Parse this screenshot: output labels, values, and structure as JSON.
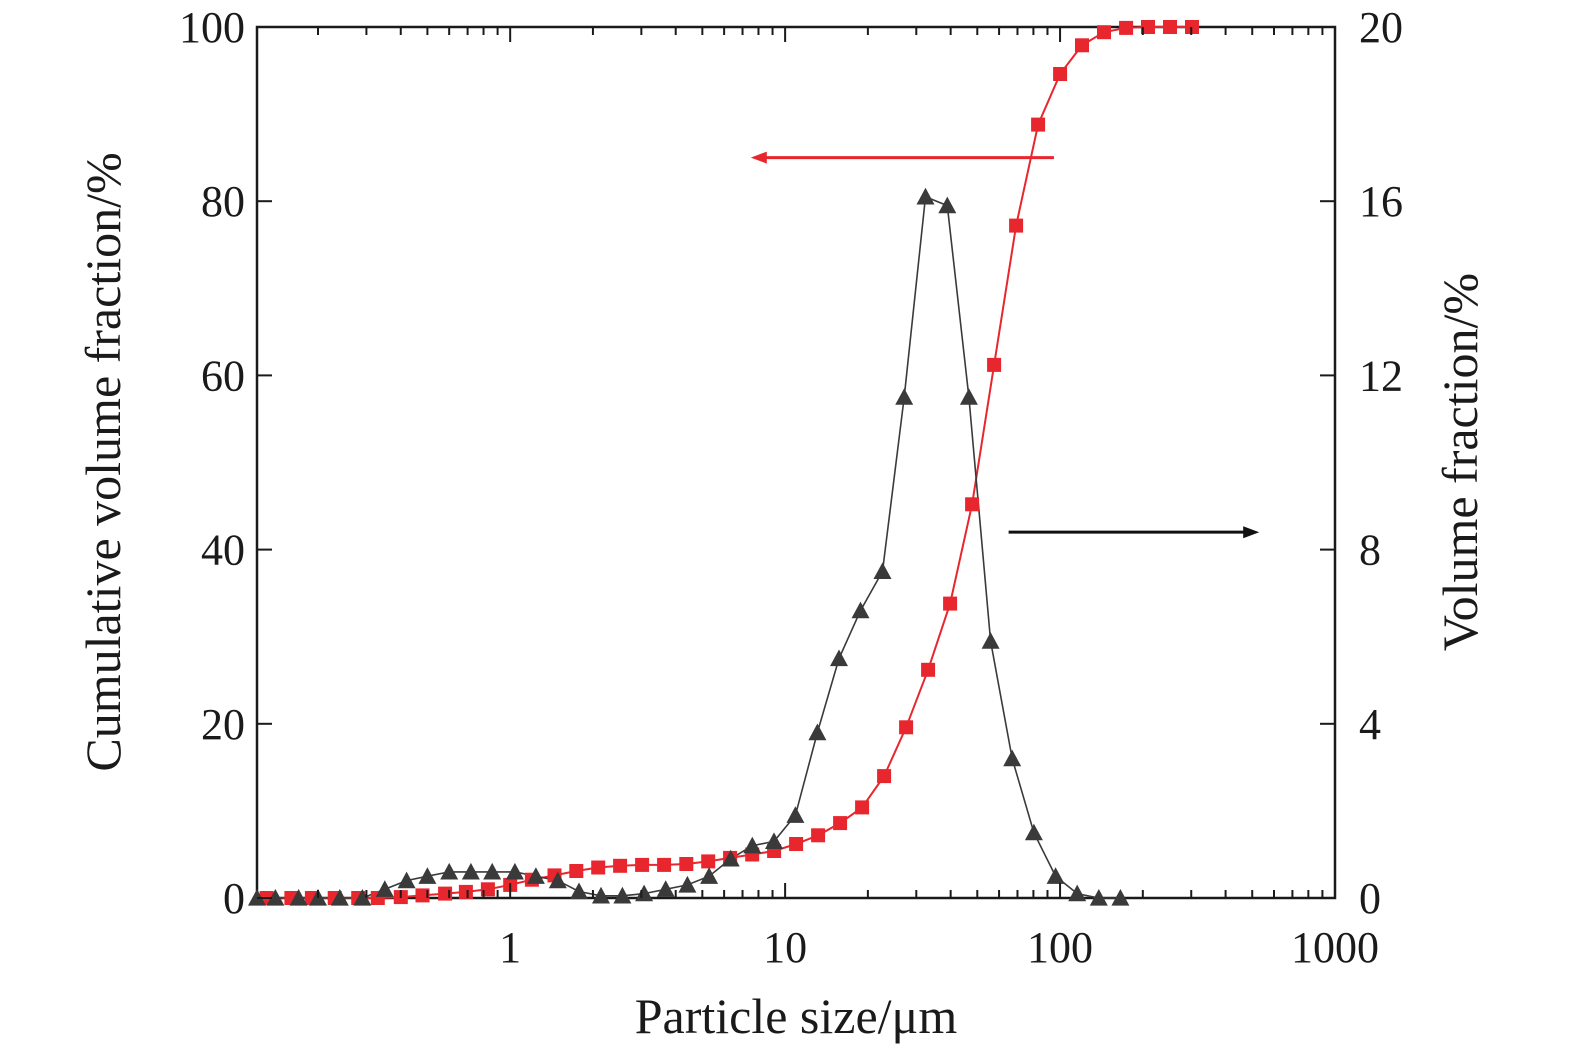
{
  "chart_data": {
    "type": "scatter",
    "title": "",
    "xlabel": "Particle size/μm",
    "ylabel_left": "Cumulative volume fraction/%",
    "ylabel_right": "Volume fraction/%",
    "x_scale": "log",
    "xlim": [
      0.12,
      1000
    ],
    "ylim_left": [
      0,
      100
    ],
    "ylim_right": [
      0,
      20
    ],
    "x_ticks": [
      1,
      10,
      100,
      1000
    ],
    "x_tick_labels": [
      "1",
      "10",
      "100",
      "1000"
    ],
    "y_left_ticks": [
      0,
      20,
      40,
      60,
      80,
      100
    ],
    "y_left_tick_labels": [
      "0",
      "20",
      "40",
      "60",
      "80",
      "100"
    ],
    "y_right_ticks": [
      0,
      4,
      8,
      12,
      16,
      20
    ],
    "y_right_tick_labels": [
      "0",
      "4",
      "8",
      "12",
      "16",
      "20"
    ],
    "grid": false,
    "legend": "none",
    "series": [
      {
        "axis": "left",
        "marker": "square",
        "color": "#e8262d",
        "x": [
          0.13,
          0.16,
          0.19,
          0.23,
          0.28,
          0.33,
          0.4,
          0.48,
          0.58,
          0.69,
          0.83,
          1.0,
          1.2,
          1.45,
          1.74,
          2.09,
          2.51,
          3.02,
          3.63,
          4.37,
          5.25,
          6.31,
          7.59,
          9.12,
          10.96,
          13.18,
          15.85,
          19.05,
          22.91,
          27.54,
          33.11,
          39.81,
          47.86,
          57.54,
          69.18,
          83.18,
          100.0,
          120.2,
          144.5,
          173.8,
          208.9,
          251.2,
          302.0
        ],
        "y": [
          0.0,
          0.0,
          0.0,
          0.0,
          0.0,
          0.0,
          0.1,
          0.3,
          0.5,
          0.7,
          1.0,
          1.5,
          2.1,
          2.6,
          3.1,
          3.5,
          3.7,
          3.8,
          3.8,
          3.9,
          4.2,
          4.6,
          5.0,
          5.4,
          6.2,
          7.2,
          8.6,
          10.4,
          14.0,
          19.6,
          26.2,
          33.8,
          45.2,
          61.2,
          77.2,
          88.8,
          94.6,
          97.9,
          99.4,
          99.9,
          100.0,
          100.0,
          100.0
        ]
      },
      {
        "axis": "right",
        "marker": "triangle",
        "color": "#3a3a3a",
        "x": [
          0.12,
          0.14,
          0.17,
          0.2,
          0.24,
          0.29,
          0.35,
          0.42,
          0.5,
          0.6,
          0.72,
          0.86,
          1.04,
          1.24,
          1.49,
          1.78,
          2.14,
          2.56,
          3.07,
          3.68,
          4.41,
          5.29,
          6.34,
          7.6,
          9.11,
          10.9,
          13.1,
          15.7,
          18.8,
          22.6,
          27.1,
          32.4,
          38.9,
          46.6,
          55.9,
          67.0,
          80.3,
          96.3,
          115.4,
          138.3,
          165.8
        ],
        "y": [
          0.0,
          0.0,
          0.0,
          0.0,
          0.0,
          0.0,
          0.2,
          0.4,
          0.5,
          0.6,
          0.6,
          0.6,
          0.6,
          0.5,
          0.4,
          0.15,
          0.05,
          0.05,
          0.1,
          0.2,
          0.3,
          0.5,
          0.9,
          1.2,
          1.3,
          1.9,
          3.8,
          5.5,
          6.6,
          7.5,
          11.5,
          16.1,
          15.9,
          11.5,
          5.9,
          3.2,
          1.5,
          0.5,
          0.1,
          0.0,
          0.0
        ]
      }
    ],
    "annotations": [
      {
        "type": "arrow",
        "color": "#e8262d",
        "direction": "left",
        "from": [
          95,
          85
        ],
        "to": [
          7.5,
          85
        ],
        "axis": "left"
      },
      {
        "type": "arrow",
        "color": "#111111",
        "direction": "right",
        "from": [
          65,
          8.4
        ],
        "to": [
          530,
          8.4
        ],
        "axis": "right"
      }
    ]
  }
}
